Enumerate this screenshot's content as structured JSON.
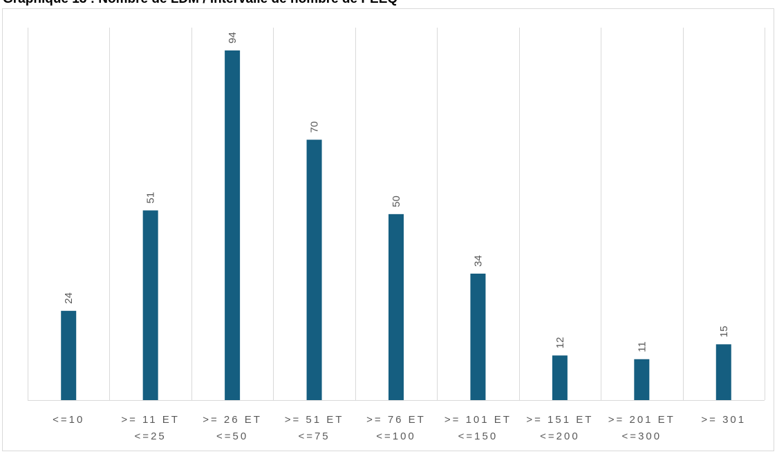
{
  "chart_data": {
    "type": "bar",
    "title": "Graphique 13 : Nombre de LDM / intervalle de nombre de PEEQ",
    "categories": [
      [
        "<=10"
      ],
      [
        ">= 11 ET",
        "<=25"
      ],
      [
        ">= 26 ET",
        "<=50"
      ],
      [
        ">= 51 ET",
        "<=75"
      ],
      [
        ">= 76 ET",
        "<=100"
      ],
      [
        ">= 101 ET",
        "<=150"
      ],
      [
        ">= 151 ET",
        "<=200"
      ],
      [
        ">= 201 ET",
        "<=300"
      ],
      [
        ">= 301"
      ]
    ],
    "values": [
      24,
      51,
      94,
      70,
      50,
      34,
      12,
      11,
      15
    ],
    "ylim": [
      0,
      100
    ],
    "grid": "vertical",
    "bar_color": "#155e80",
    "grid_color": "#d9d9d9",
    "label_color": "#595959"
  }
}
